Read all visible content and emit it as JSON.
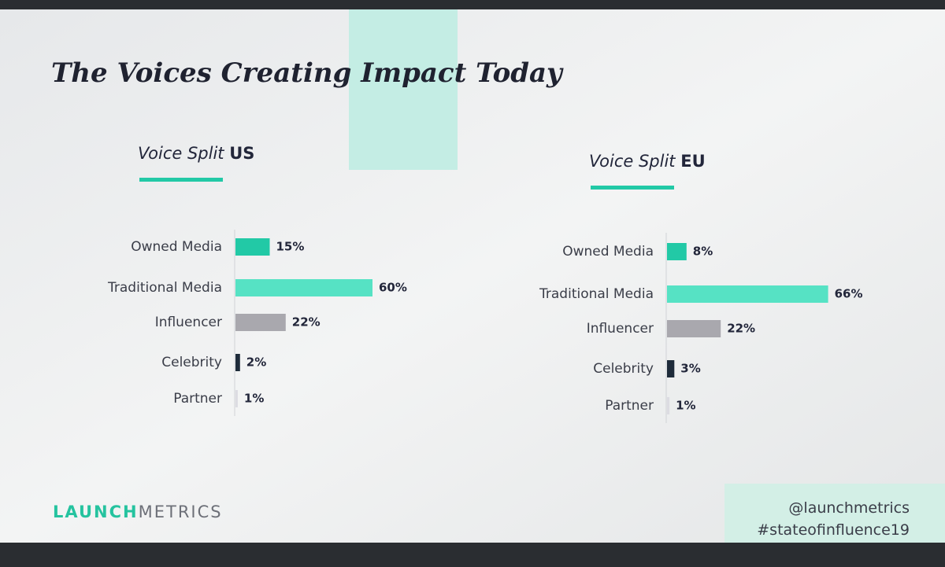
{
  "title": "The Voices Creating Impact Today",
  "brand": {
    "primary": "LAUNCH",
    "secondary": "METRICS"
  },
  "handles": [
    "@launchmetrics",
    "#stateofinfluence19"
  ],
  "chart_data": [
    {
      "type": "hbar",
      "title": "Voice Split",
      "title_emphasis": "US",
      "categories": [
        "Owned Media",
        "Traditional Media",
        "Influencer",
        "Celebrity",
        "Partner"
      ],
      "values": [
        15,
        60,
        22,
        2,
        1
      ],
      "value_labels": [
        "15%",
        "60%",
        "22%",
        "2%",
        "1%"
      ],
      "colors": [
        "#22c9a6",
        "#56e2c4",
        "#a9a8ae",
        "#1e2b3a",
        "#dcdce2"
      ]
    },
    {
      "type": "hbar",
      "title": "Voice Split",
      "title_emphasis": "EU",
      "categories": [
        "Owned Media",
        "Traditional Media",
        "Influencer",
        "Celebrity",
        "Partner"
      ],
      "values": [
        8,
        66,
        22,
        3,
        1
      ],
      "value_labels": [
        "8%",
        "66%",
        "22%",
        "3%",
        "1%"
      ],
      "colors": [
        "#22c9a6",
        "#56e2c4",
        "#a9a8ae",
        "#1e2b3a",
        "#dcdce2"
      ]
    }
  ]
}
